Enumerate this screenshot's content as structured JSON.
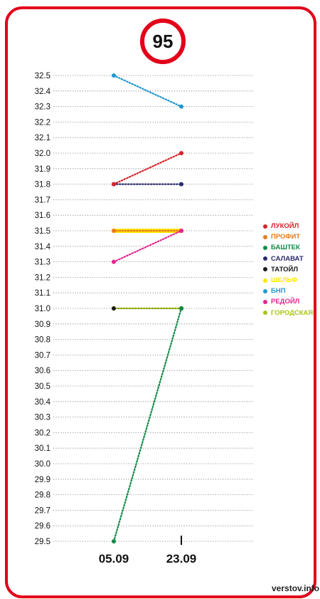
{
  "badge": "95",
  "watermark": "verstov.info",
  "chart_data": {
    "type": "line",
    "title": "95",
    "x": [
      "05.09",
      "23.09"
    ],
    "ylim": [
      29.5,
      32.5
    ],
    "yticks": [
      32.5,
      32.4,
      32.3,
      32.2,
      32.1,
      32.0,
      31.9,
      31.8,
      31.7,
      31.6,
      31.5,
      31.4,
      31.3,
      31.2,
      31.1,
      31.0,
      30.9,
      30.8,
      30.7,
      30.6,
      30.5,
      30.4,
      30.3,
      30.2,
      30.1,
      30.0,
      29.9,
      29.8,
      29.7,
      29.6,
      29.5
    ],
    "ytick_labels": [
      "32.5",
      "32.4",
      "32.3",
      "32.2",
      "32.1",
      "32.0",
      "31.9",
      "31.8",
      "31.7",
      "31.6",
      "31.5",
      "31.4",
      "31.3",
      "31.2",
      "31.1",
      "31.0",
      "30.9",
      "30.8",
      "30.7",
      "30.6",
      "30.5",
      "30.4",
      "30.3",
      "30.2",
      "30.1",
      "30.0",
      "29.9",
      "29.8",
      "29.7",
      "29.6",
      "29.5"
    ],
    "grid": true,
    "legend_position": "right",
    "series": [
      {
        "name": "ЛУКОЙЛ",
        "color": "#d7232a",
        "values": [
          31.8,
          32.0
        ],
        "style": "dotted"
      },
      {
        "name": "ПРОФИТ",
        "color": "#e87a1d",
        "values": [
          31.5,
          31.5
        ],
        "style": "dotted"
      },
      {
        "name": "БАШТЕК",
        "color": "#0e8a43",
        "values": [
          29.5,
          31.0
        ],
        "style": "dotted"
      },
      {
        "name": "САЛАВАТ",
        "color": "#2b2a6e",
        "values": [
          31.8,
          31.8
        ],
        "style": "dotted"
      },
      {
        "name": "ТАТОЙЛ",
        "color": "#1a1a1a",
        "values": [
          31.0,
          31.0
        ],
        "style": "solid"
      },
      {
        "name": "ШЕЛЬФ",
        "color": "#ffe600",
        "values": [
          31.5,
          31.5
        ],
        "style": "solid"
      },
      {
        "name": "БНП",
        "color": "#2296d1",
        "values": [
          32.5,
          32.3
        ],
        "style": "dotted"
      },
      {
        "name": "РЕДОЙЛ",
        "color": "#e4258c",
        "values": [
          31.3,
          31.5
        ],
        "style": "dotted"
      },
      {
        "name": "ГОРОДСКАЯ",
        "color": "#a8c41a",
        "values": [
          31.0,
          31.0
        ],
        "style": "dotted"
      }
    ]
  }
}
